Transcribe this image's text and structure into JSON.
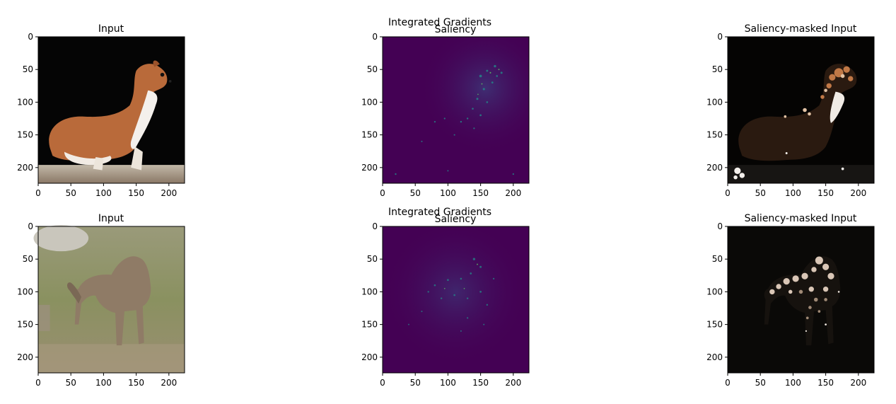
{
  "colors": {
    "frame": "#000000",
    "viridis_dark": "#440154",
    "saliency_mid": "#3b528b",
    "saliency_hi": "#21918c",
    "saliency_peak": "#5ec962",
    "weasel_fur": "#b96a3a",
    "weasel_belly": "#f4f0ec",
    "camel": "#8f7b66",
    "grass": "#8f9566",
    "wood": "#a79483"
  },
  "figure": {
    "rows": [
      {
        "input": {
          "title": "Input",
          "subject": "weasel-photo"
        },
        "saliency": {
          "title_line1": "Integrated Gradients",
          "title_line2": "Saliency",
          "colormap": "viridis"
        },
        "masked": {
          "title": "Saliency-masked Input"
        }
      },
      {
        "input": {
          "title": "Input",
          "subject": "camel-photo"
        },
        "saliency": {
          "title_line1": "Integrated Gradients",
          "title_line2": "Saliency",
          "colormap": "viridis"
        },
        "masked": {
          "title": "Saliency-masked Input"
        }
      }
    ]
  },
  "chart_data": [
    {
      "type": "heatmap",
      "title": "Input",
      "xlim": [
        0,
        224
      ],
      "ylim": [
        224,
        0
      ],
      "xticks": [
        0,
        50,
        100,
        150,
        200
      ],
      "yticks": [
        0,
        50,
        100,
        150,
        200
      ]
    },
    {
      "type": "heatmap",
      "title": "Integrated Gradients\nSaliency",
      "xlim": [
        0,
        224
      ],
      "ylim": [
        224,
        0
      ],
      "xticks": [
        0,
        50,
        100,
        150,
        200
      ],
      "yticks": [
        0,
        50,
        100,
        150,
        200
      ]
    },
    {
      "type": "heatmap",
      "title": "Saliency-masked Input",
      "xlim": [
        0,
        224
      ],
      "ylim": [
        224,
        0
      ],
      "xticks": [
        0,
        50,
        100,
        150,
        200
      ],
      "yticks": [
        0,
        50,
        100,
        150,
        200
      ]
    },
    {
      "type": "heatmap",
      "title": "Input",
      "xlim": [
        0,
        224
      ],
      "ylim": [
        224,
        0
      ],
      "xticks": [
        0,
        50,
        100,
        150,
        200
      ],
      "yticks": [
        0,
        50,
        100,
        150,
        200
      ]
    },
    {
      "type": "heatmap",
      "title": "Integrated Gradients\nSaliency",
      "xlim": [
        0,
        224
      ],
      "ylim": [
        224,
        0
      ],
      "xticks": [
        0,
        50,
        100,
        150,
        200
      ],
      "yticks": [
        0,
        50,
        100,
        150,
        200
      ]
    },
    {
      "type": "heatmap",
      "title": "Saliency-masked Input",
      "xlim": [
        0,
        224
      ],
      "ylim": [
        224,
        0
      ],
      "xticks": [
        0,
        50,
        100,
        150,
        200
      ],
      "yticks": [
        0,
        50,
        100,
        150,
        200
      ]
    }
  ]
}
